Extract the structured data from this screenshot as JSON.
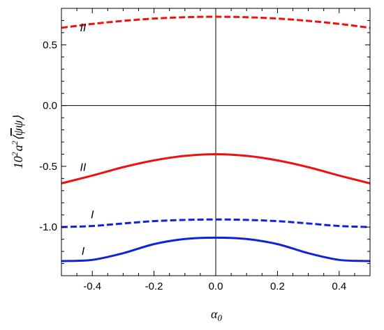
{
  "chart_data": {
    "type": "line",
    "xlabel_base": "α",
    "xlabel_sub": "0",
    "ylabel_coef": "10",
    "ylabel_exp": "2",
    "ylabel_a": "a",
    "ylabel_a_exp": "2",
    "ylabel_bracket_open": "⟨",
    "ylabel_psibar": "ψ",
    "ylabel_psi": "ψ",
    "ylabel_bracket_close": "⟩",
    "xlim": [
      -0.5,
      0.5
    ],
    "ylim": [
      -1.4,
      0.8
    ],
    "x_ticks": [
      -0.4,
      -0.2,
      0.0,
      0.2,
      0.4
    ],
    "x_tick_labels": [
      "-0.4",
      "-0.2",
      "0.0",
      "0.2",
      "0.4"
    ],
    "y_ticks": [
      0.5,
      0.0,
      -0.5,
      -1.0
    ],
    "y_tick_labels": [
      "0.5",
      "0.0",
      "-0.5",
      "-1.0"
    ],
    "x": [
      -0.5,
      -0.4,
      -0.3,
      -0.2,
      -0.1,
      0.0,
      0.1,
      0.2,
      0.3,
      0.4,
      0.5
    ],
    "series": [
      {
        "color": "#ee1111",
        "dash": "dashed",
        "values": [
          0.64,
          0.672,
          0.697,
          0.716,
          0.727,
          0.731,
          0.727,
          0.716,
          0.697,
          0.672,
          0.64
        ]
      },
      {
        "color": "#ee1111",
        "dash": "solid",
        "values": [
          -0.64,
          -0.576,
          -0.507,
          -0.451,
          -0.414,
          -0.4,
          -0.414,
          -0.451,
          -0.507,
          -0.576,
          -0.64
        ]
      },
      {
        "color": "#1122dd",
        "dash": "dashed",
        "values": [
          -1.0,
          -0.991,
          -0.97,
          -0.951,
          -0.941,
          -0.937,
          -0.941,
          -0.951,
          -0.97,
          -0.991,
          -1.0
        ]
      },
      {
        "color": "#1122dd",
        "dash": "solid",
        "values": [
          -1.28,
          -1.27,
          -1.215,
          -1.14,
          -1.098,
          -1.087,
          -1.098,
          -1.14,
          -1.215,
          -1.27,
          -1.28
        ]
      }
    ],
    "annotations": [
      {
        "text": "II",
        "x": -0.43,
        "y": 0.64
      },
      {
        "text": "II",
        "x": -0.43,
        "y": -0.51
      },
      {
        "text": "I",
        "x": -0.4,
        "y": -0.9
      },
      {
        "text": "I",
        "x": -0.43,
        "y": -1.2
      }
    ]
  }
}
